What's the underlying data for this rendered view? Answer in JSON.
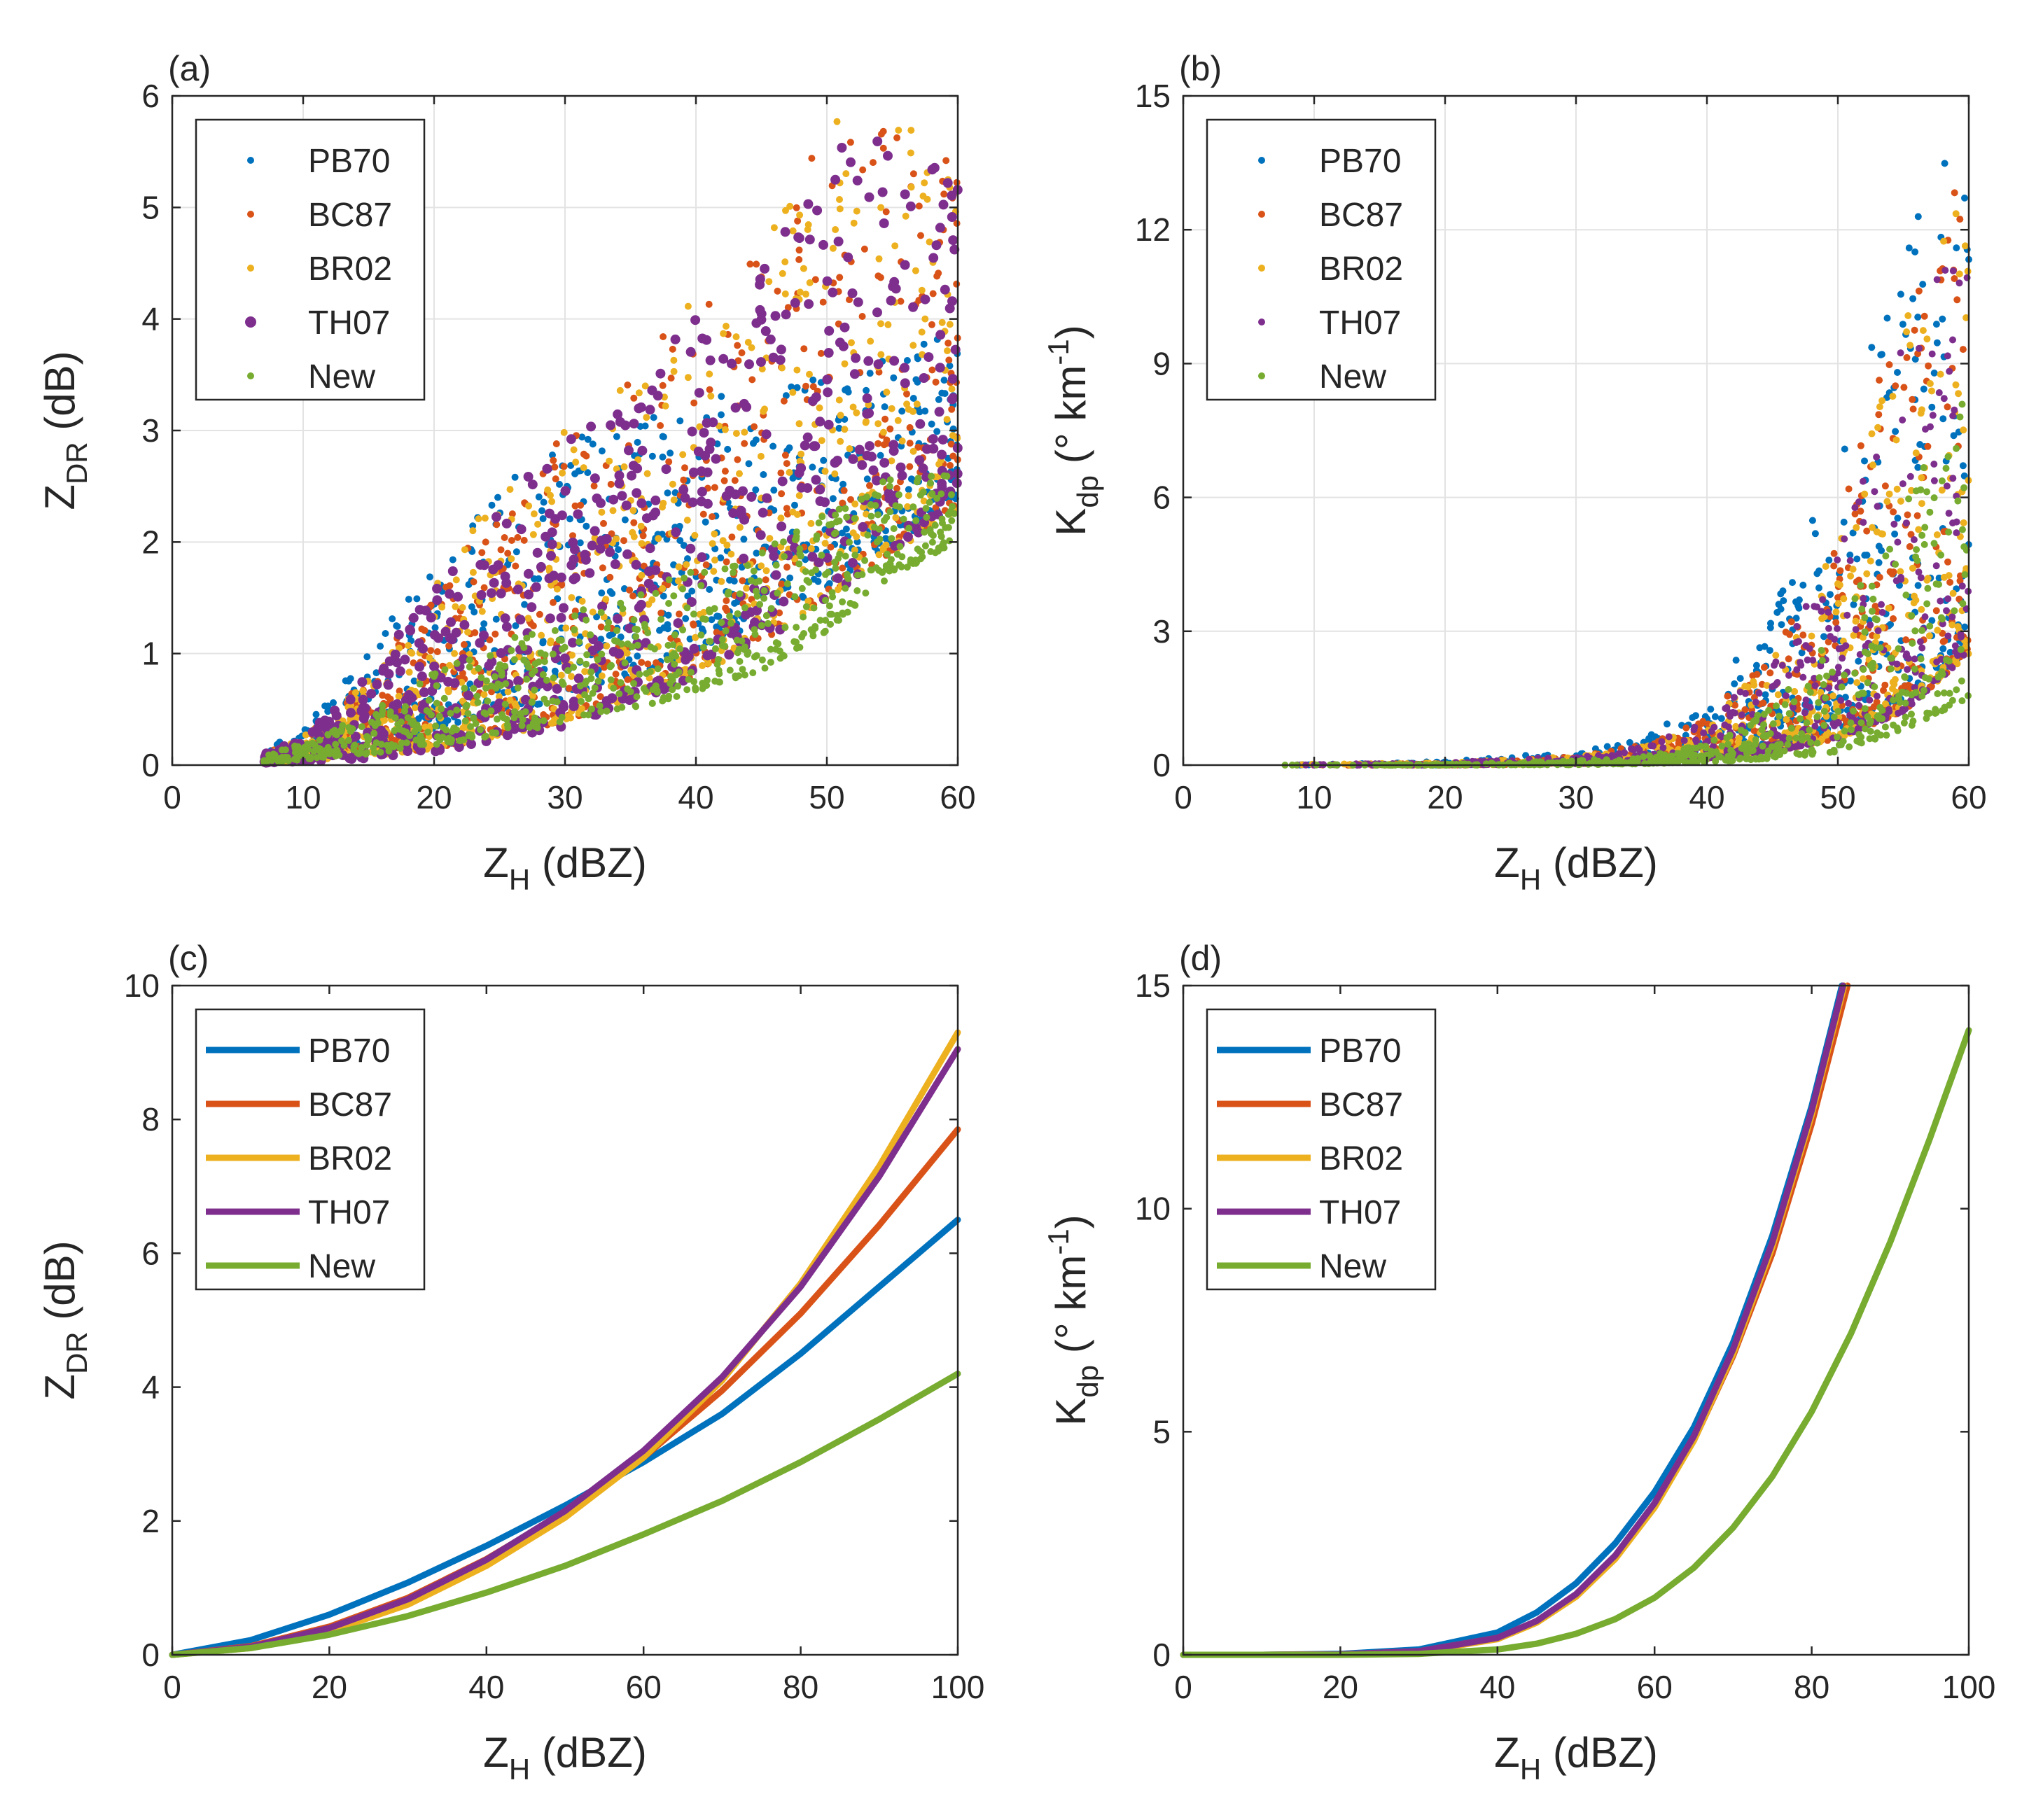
{
  "figure": {
    "panels": [
      {
        "id": "a",
        "panel_label": "(a)"
      },
      {
        "id": "b",
        "panel_label": "(b)"
      },
      {
        "id": "c",
        "panel_label": "(c)"
      },
      {
        "id": "d",
        "panel_label": "(d)"
      }
    ]
  },
  "colors": {
    "PB70": "#0072BD",
    "BC87": "#D95319",
    "BR02": "#EDB120",
    "TH07": "#7E2F8E",
    "New": "#77AC30"
  },
  "chart_data": [
    {
      "id": "a",
      "type": "scatter",
      "panel_label": "(a)",
      "xlabel": {
        "main": "Z",
        "sub": "H",
        "rest": " (dBZ)"
      },
      "ylabel": {
        "main": "Z",
        "sub": "DR",
        "rest": " (dB)"
      },
      "xlim": [
        0,
        60
      ],
      "ylim": [
        0,
        6
      ],
      "xticks": [
        0,
        10,
        20,
        30,
        40,
        50,
        60
      ],
      "yticks": [
        0,
        1,
        2,
        3,
        4,
        5,
        6
      ],
      "grid": true,
      "legend": {
        "placement": "top-left",
        "style": "marker",
        "entries": [
          "PB70",
          "BC87",
          "BR02",
          "TH07",
          "New"
        ]
      },
      "series": [
        {
          "name": "PB70",
          "envelope": {
            "x": [
              7,
              10,
              15,
              20,
              25,
              30,
              35,
              40,
              45,
              50,
              55,
              60
            ],
            "lower": [
              0.05,
              0.1,
              0.2,
              0.3,
              0.45,
              0.6,
              0.8,
              1.0,
              1.3,
              1.6,
              2.0,
              2.3
            ],
            "upper": [
              0.12,
              0.35,
              1.0,
              1.9,
              2.5,
              2.9,
              3.1,
              3.3,
              3.4,
              3.5,
              3.7,
              3.9
            ]
          }
        },
        {
          "name": "BC87",
          "envelope": {
            "x": [
              7,
              10,
              15,
              20,
              25,
              30,
              35,
              40,
              45,
              50,
              55,
              60
            ],
            "lower": [
              0.02,
              0.04,
              0.08,
              0.15,
              0.25,
              0.4,
              0.6,
              0.8,
              1.1,
              1.5,
              1.9,
              2.3
            ],
            "upper": [
              0.1,
              0.25,
              0.8,
              1.6,
              2.5,
              3.0,
              3.5,
              4.2,
              4.6,
              5.7,
              5.8,
              5.4
            ]
          }
        },
        {
          "name": "BR02",
          "envelope": {
            "x": [
              7,
              10,
              15,
              20,
              25,
              30,
              35,
              40,
              45,
              50,
              55,
              60
            ],
            "lower": [
              0.02,
              0.04,
              0.08,
              0.15,
              0.25,
              0.4,
              0.6,
              0.8,
              1.1,
              1.5,
              1.9,
              2.3
            ],
            "upper": [
              0.1,
              0.25,
              0.8,
              1.6,
              2.5,
              3.0,
              3.5,
              4.2,
              4.6,
              5.8,
              5.9,
              5.4
            ]
          }
        },
        {
          "name": "TH07",
          "envelope": {
            "x": [
              7,
              10,
              15,
              20,
              25,
              30,
              35,
              40,
              45,
              50,
              55,
              60
            ],
            "lower": [
              0.02,
              0.03,
              0.06,
              0.12,
              0.22,
              0.35,
              0.55,
              0.8,
              1.1,
              1.5,
              1.9,
              2.3
            ],
            "upper": [
              0.1,
              0.25,
              0.8,
              1.6,
              2.4,
              2.9,
              3.4,
              4.1,
              4.5,
              5.7,
              5.9,
              5.3
            ]
          }
        },
        {
          "name": "New",
          "envelope": {
            "x": [
              7,
              10,
              15,
              20,
              25,
              30,
              35,
              40,
              45,
              50,
              55,
              60
            ],
            "lower": [
              0.02,
              0.05,
              0.1,
              0.18,
              0.27,
              0.38,
              0.5,
              0.65,
              0.85,
              1.2,
              1.7,
              2.0
            ],
            "upper": [
              0.08,
              0.2,
              0.5,
              0.85,
              1.1,
              1.35,
              1.55,
              1.75,
              2.0,
              2.3,
              2.6,
              2.6
            ]
          }
        }
      ]
    },
    {
      "id": "b",
      "type": "scatter",
      "panel_label": "(b)",
      "xlabel": {
        "main": "Z",
        "sub": "H",
        "rest": " (dBZ)"
      },
      "ylabel": {
        "main": "K",
        "sub": "dp",
        "rest": " (° km",
        "sup": "-1",
        "tail": ")"
      },
      "xlim": [
        0,
        60
      ],
      "ylim": [
        0,
        15
      ],
      "xticks": [
        0,
        10,
        20,
        30,
        40,
        50,
        60
      ],
      "yticks": [
        0,
        3,
        6,
        9,
        12,
        15
      ],
      "grid": true,
      "legend": {
        "placement": "top-left",
        "style": "marker",
        "entries": [
          "PB70",
          "BC87",
          "BR02",
          "TH07",
          "New"
        ]
      },
      "series": [
        {
          "name": "PB70",
          "envelope": {
            "x": [
              7,
              20,
              30,
              35,
              40,
              45,
              50,
              55,
              60
            ],
            "lower": [
              0.0,
              0.0,
              0.05,
              0.1,
              0.2,
              0.4,
              0.8,
              1.5,
              2.5
            ],
            "upper": [
              0.01,
              0.08,
              0.3,
              0.6,
              1.5,
              3.5,
              7.0,
              12.0,
              14.5
            ]
          }
        },
        {
          "name": "BC87",
          "envelope": {
            "x": [
              7,
              20,
              30,
              35,
              40,
              45,
              50,
              55,
              60
            ],
            "lower": [
              0.0,
              0.0,
              0.03,
              0.07,
              0.15,
              0.3,
              0.6,
              1.2,
              2.5
            ],
            "upper": [
              0.01,
              0.05,
              0.2,
              0.45,
              1.1,
              2.6,
              5.5,
              10.5,
              13.5
            ]
          }
        },
        {
          "name": "BR02",
          "envelope": {
            "x": [
              7,
              20,
              30,
              35,
              40,
              45,
              50,
              55,
              60
            ],
            "lower": [
              0.0,
              0.0,
              0.03,
              0.07,
              0.15,
              0.3,
              0.6,
              1.2,
              2.5
            ],
            "upper": [
              0.01,
              0.05,
              0.2,
              0.4,
              1.0,
              2.4,
              5.0,
              10.0,
              13.0
            ]
          }
        },
        {
          "name": "TH07",
          "envelope": {
            "x": [
              7,
              20,
              30,
              35,
              40,
              45,
              50,
              55,
              60
            ],
            "lower": [
              0.0,
              0.0,
              0.03,
              0.07,
              0.15,
              0.3,
              0.6,
              1.2,
              2.5
            ],
            "upper": [
              0.01,
              0.05,
              0.2,
              0.4,
              1.0,
              2.3,
              4.8,
              9.5,
              12.8
            ]
          }
        },
        {
          "name": "New",
          "envelope": {
            "x": [
              7,
              20,
              30,
              35,
              40,
              45,
              50,
              55,
              60
            ],
            "lower": [
              0.0,
              0.0,
              0.01,
              0.03,
              0.07,
              0.15,
              0.3,
              0.8,
              1.5
            ],
            "upper": [
              0.0,
              0.02,
              0.1,
              0.2,
              0.5,
              1.3,
              3.0,
              6.0,
              9.5
            ]
          }
        }
      ]
    },
    {
      "id": "c",
      "type": "line",
      "panel_label": "(c)",
      "xlabel": {
        "main": "Z",
        "sub": "H",
        "rest": " (dBZ)"
      },
      "ylabel": {
        "main": "Z",
        "sub": "DR",
        "rest": " (dB)"
      },
      "xlim": [
        0,
        100
      ],
      "ylim": [
        0,
        10
      ],
      "xticks": [
        0,
        20,
        40,
        60,
        80,
        100
      ],
      "yticks": [
        0,
        2,
        4,
        6,
        8,
        10
      ],
      "grid": false,
      "legend": {
        "placement": "top-left",
        "style": "line",
        "entries": [
          "PB70",
          "BC87",
          "BR02",
          "TH07",
          "New"
        ]
      },
      "x": [
        0,
        10,
        20,
        30,
        40,
        50,
        60,
        70,
        80,
        90,
        100
      ],
      "series": [
        {
          "name": "PB70",
          "values": [
            0.0,
            0.22,
            0.6,
            1.08,
            1.63,
            2.23,
            2.88,
            3.6,
            4.5,
            5.5,
            6.5
          ]
        },
        {
          "name": "BC87",
          "values": [
            0.0,
            0.13,
            0.42,
            0.85,
            1.43,
            2.13,
            2.95,
            3.95,
            5.1,
            6.42,
            7.85
          ]
        },
        {
          "name": "BR02",
          "values": [
            0.0,
            0.1,
            0.35,
            0.75,
            1.33,
            2.05,
            2.95,
            4.1,
            5.55,
            7.3,
            9.3
          ]
        },
        {
          "name": "TH07",
          "values": [
            0.0,
            0.12,
            0.4,
            0.83,
            1.42,
            2.15,
            3.05,
            4.15,
            5.5,
            7.15,
            9.05
          ]
        },
        {
          "name": "New",
          "values": [
            0.0,
            0.1,
            0.3,
            0.58,
            0.93,
            1.33,
            1.8,
            2.3,
            2.88,
            3.52,
            4.2
          ]
        }
      ]
    },
    {
      "id": "d",
      "type": "line",
      "panel_label": "(d)",
      "xlabel": {
        "main": "Z",
        "sub": "H",
        "rest": " (dBZ)"
      },
      "ylabel": {
        "main": "K",
        "sub": "dp",
        "rest": " (° km",
        "sup": "-1",
        "tail": ")"
      },
      "xlim": [
        0,
        100
      ],
      "ylim": [
        0,
        15
      ],
      "xticks": [
        0,
        20,
        40,
        60,
        80,
        100
      ],
      "yticks": [
        0,
        5,
        10,
        15
      ],
      "grid": false,
      "legend": {
        "placement": "top-left",
        "style": "line",
        "entries": [
          "PB70",
          "BC87",
          "BR02",
          "TH07",
          "New"
        ]
      },
      "x": [
        0,
        10,
        20,
        30,
        40,
        45,
        50,
        55,
        60,
        65,
        70,
        75,
        80,
        85,
        90,
        95,
        100
      ],
      "series": [
        {
          "name": "PB70",
          "values": [
            0.0,
            0.0,
            0.02,
            0.12,
            0.5,
            0.95,
            1.6,
            2.5,
            3.65,
            5.1,
            7.0,
            9.4,
            12.3,
            15.8,
            null,
            null,
            null
          ]
        },
        {
          "name": "BC87",
          "values": [
            0.0,
            0.0,
            0.01,
            0.08,
            0.38,
            0.75,
            1.35,
            2.2,
            3.35,
            4.8,
            6.7,
            9.0,
            11.9,
            15.3,
            null,
            null,
            null
          ]
        },
        {
          "name": "BR02",
          "values": [
            0.0,
            0.0,
            0.01,
            0.07,
            0.35,
            0.72,
            1.3,
            2.15,
            3.3,
            4.8,
            6.75,
            9.15,
            12.1,
            15.6,
            null,
            null,
            null
          ]
        },
        {
          "name": "TH07",
          "values": [
            0.0,
            0.0,
            0.01,
            0.08,
            0.38,
            0.76,
            1.36,
            2.23,
            3.4,
            4.9,
            6.85,
            9.25,
            12.2,
            15.7,
            null,
            null,
            null
          ]
        },
        {
          "name": "New",
          "values": [
            0.0,
            0.0,
            0.0,
            0.02,
            0.12,
            0.25,
            0.47,
            0.8,
            1.28,
            1.95,
            2.85,
            4.0,
            5.45,
            7.2,
            9.25,
            11.55,
            14.0
          ]
        }
      ]
    }
  ]
}
